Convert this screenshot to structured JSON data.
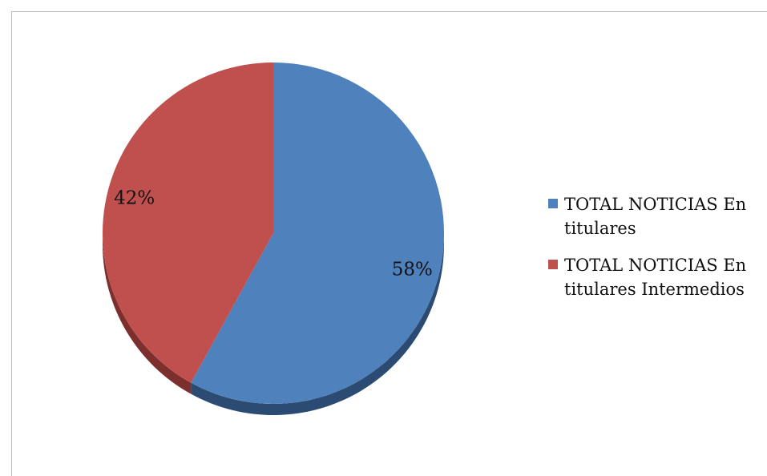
{
  "chart_data": {
    "type": "pie",
    "title": "",
    "style": "3d",
    "legend_position": "right",
    "slices": [
      {
        "name_lines": [
          "TOTAL NOTICIAS En",
          "titulares"
        ],
        "value": 58,
        "label": "58%",
        "color": "#4F81BD",
        "shadow_color": "#2B4B73"
      },
      {
        "name_lines": [
          "TOTAL NOTICIAS En",
          "titulares Intermedios"
        ],
        "value": 42,
        "label": "42%",
        "color": "#C0504D",
        "shadow_color": "#7D2F2D"
      }
    ]
  }
}
